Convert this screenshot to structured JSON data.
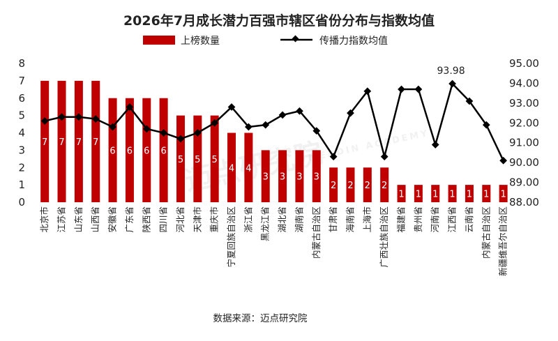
{
  "chart_data": {
    "type": "bar",
    "title": "2026年7月成长潜力百强市辖区省份分布与指数均值",
    "categories": [
      "北京市",
      "江苏省",
      "山东省",
      "山西省",
      "安徽省",
      "广东省",
      "陕西省",
      "四川省",
      "河北省",
      "天津市",
      "重庆市",
      "宁夏回族自治区",
      "浙江省",
      "黑龙江省",
      "湖北省",
      "湖南省",
      "内蒙古自治区",
      "甘肃省",
      "海南省",
      "上海市",
      "广西壮族自治区",
      "福建省",
      "贵州省",
      "河南省",
      "江西省",
      "云南省",
      "内蒙古自治区",
      "新疆维吾尔自治区"
    ],
    "series": [
      {
        "name": "上榜数量",
        "type": "bar",
        "axis": "left",
        "color": "#c00000",
        "values": [
          7,
          7,
          7,
          7,
          6,
          6,
          6,
          6,
          5,
          5,
          5,
          4,
          4,
          3,
          3,
          3,
          3,
          2,
          2,
          2,
          2,
          1,
          1,
          1,
          1,
          1,
          1,
          1
        ]
      },
      {
        "name": "传播力指数均值",
        "type": "line",
        "axis": "right",
        "color": "#000000",
        "values": [
          92.1,
          92.3,
          92.3,
          92.2,
          91.8,
          92.8,
          91.7,
          91.5,
          91.2,
          91.5,
          92.0,
          92.8,
          91.8,
          91.9,
          92.4,
          92.6,
          91.6,
          90.3,
          92.5,
          93.6,
          90.3,
          93.7,
          93.7,
          90.9,
          93.98,
          93.1,
          91.9,
          90.1
        ]
      }
    ],
    "ylim_left": [
      0,
      8
    ],
    "yticks_left": [
      "0",
      "1",
      "2",
      "3",
      "4",
      "5",
      "6",
      "7",
      "8"
    ],
    "ylim_right": [
      88,
      95
    ],
    "yticks_right": [
      "88.00",
      "89.00",
      "90.00",
      "91.00",
      "92.00",
      "93.00",
      "94.00",
      "95.00"
    ],
    "annotation": "93.98",
    "legend": "top-center",
    "grid": false
  },
  "source": "数据来源：迈点研究院",
  "watermark": "迈点研究院",
  "watermark_sub": "MEADIN ACADEMY"
}
